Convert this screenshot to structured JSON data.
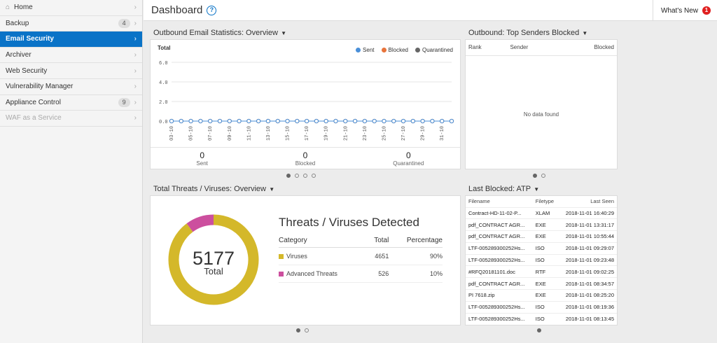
{
  "sidebar": {
    "items": [
      {
        "label": "Home",
        "count": "",
        "state": "normal"
      },
      {
        "label": "Backup",
        "count": "4",
        "state": "normal"
      },
      {
        "label": "Email Security",
        "count": "",
        "state": "active"
      },
      {
        "label": "Archiver",
        "count": "",
        "state": "normal"
      },
      {
        "label": "Web Security",
        "count": "",
        "state": "normal"
      },
      {
        "label": "Vulnerability Manager",
        "count": "",
        "state": "normal"
      },
      {
        "label": "Appliance Control",
        "count": "9",
        "state": "normal"
      },
      {
        "label": "WAF as a Service",
        "count": "",
        "state": "disabled"
      }
    ]
  },
  "header": {
    "title": "Dashboard",
    "help_glyph": "?",
    "whats_new": "What's New",
    "notification_count": "1"
  },
  "outbound_stats": {
    "title": "Outbound Email Statistics: Overview",
    "legend": [
      "Sent",
      "Blocked",
      "Quarantined"
    ],
    "summary": [
      {
        "value": "0",
        "label": "Sent"
      },
      {
        "value": "0",
        "label": "Blocked"
      },
      {
        "value": "0",
        "label": "Quarantined"
      }
    ]
  },
  "chart_data": {
    "type": "line",
    "title": "",
    "ylabel": "Total",
    "ylim": [
      0,
      6
    ],
    "yticks": [
      "0.0",
      "2.0",
      "4.0",
      "6.0"
    ],
    "x": [
      "03-10",
      "04-10",
      "05-10",
      "06-10",
      "07-10",
      "08-10",
      "09-10",
      "10-10",
      "11-10",
      "12-10",
      "13-10",
      "14-10",
      "15-10",
      "16-10",
      "17-10",
      "18-10",
      "19-10",
      "20-10",
      "21-10",
      "22-10",
      "23-10",
      "24-10",
      "25-10",
      "26-10",
      "27-10",
      "28-10",
      "29-10",
      "30-10",
      "31-10",
      "01-11"
    ],
    "xtick_labels": [
      "03-10",
      "05-10",
      "07-10",
      "09-10",
      "11-10",
      "13-10",
      "15-10",
      "17-10",
      "19-10",
      "21-10",
      "23-10",
      "25-10",
      "27-10",
      "29-10",
      "31-10"
    ],
    "series": [
      {
        "name": "Sent",
        "color": "#4a90d9",
        "values": [
          0,
          0,
          0,
          0,
          0,
          0,
          0,
          0,
          0,
          0,
          0,
          0,
          0,
          0,
          0,
          0,
          0,
          0,
          0,
          0,
          0,
          0,
          0,
          0,
          0,
          0,
          0,
          0,
          0,
          0
        ]
      },
      {
        "name": "Blocked",
        "color": "#e8743b",
        "values": [
          0,
          0,
          0,
          0,
          0,
          0,
          0,
          0,
          0,
          0,
          0,
          0,
          0,
          0,
          0,
          0,
          0,
          0,
          0,
          0,
          0,
          0,
          0,
          0,
          0,
          0,
          0,
          0,
          0,
          0
        ]
      },
      {
        "name": "Quarantined",
        "color": "#666666",
        "values": [
          0,
          0,
          0,
          0,
          0,
          0,
          0,
          0,
          0,
          0,
          0,
          0,
          0,
          0,
          0,
          0,
          0,
          0,
          0,
          0,
          0,
          0,
          0,
          0,
          0,
          0,
          0,
          0,
          0,
          0
        ]
      }
    ],
    "grid": true,
    "legend_position": "top-right"
  },
  "top_senders": {
    "title": "Outbound: Top Senders Blocked",
    "columns": [
      "Rank",
      "Sender",
      "Blocked"
    ],
    "empty_text": "No data found"
  },
  "threats": {
    "title": "Total Threats / Viruses: Overview",
    "heading": "Threats / Viruses Detected",
    "total": "5177",
    "total_label": "Total",
    "columns": [
      "Category",
      "Total",
      "Percentage"
    ],
    "rows": [
      {
        "category": "Viruses",
        "total": "4651",
        "pct": "90%",
        "value": 4651,
        "color": "#d4b82a"
      },
      {
        "category": "Advanced Threats",
        "total": "526",
        "pct": "10%",
        "value": 526,
        "color": "#cc4f9e"
      }
    ]
  },
  "last_blocked": {
    "title": "Last Blocked: ATP",
    "columns": [
      "Filename",
      "Filetype",
      "Last Seen"
    ],
    "rows": [
      [
        "Contract-HD-11-02-P...",
        "XLAM",
        "2018-11-01 16:40:29"
      ],
      [
        "pdf_CONTRACT AGR...",
        "EXE",
        "2018-11-01 13:31:17"
      ],
      [
        "pdf_CONTRACT AGR...",
        "EXE",
        "2018-11-01 10:55:44"
      ],
      [
        "LTF-005289300252Hs...",
        "ISO",
        "2018-11-01 09:29:07"
      ],
      [
        "LTF-005289300252Hs...",
        "ISO",
        "2018-11-01 09:23:48"
      ],
      [
        "#RFQ20181101.doc",
        "RTF",
        "2018-11-01 09:02:25"
      ],
      [
        "pdf_CONTRACT AGR...",
        "EXE",
        "2018-11-01 08:34:57"
      ],
      [
        "PI 7618.zip",
        "EXE",
        "2018-11-01 08:25:20"
      ],
      [
        "LTF-005289300252Hs...",
        "ISO",
        "2018-11-01 08:19:36"
      ],
      [
        "LTF-005289300252Hs...",
        "ISO",
        "2018-11-01 08:13:45"
      ]
    ]
  }
}
